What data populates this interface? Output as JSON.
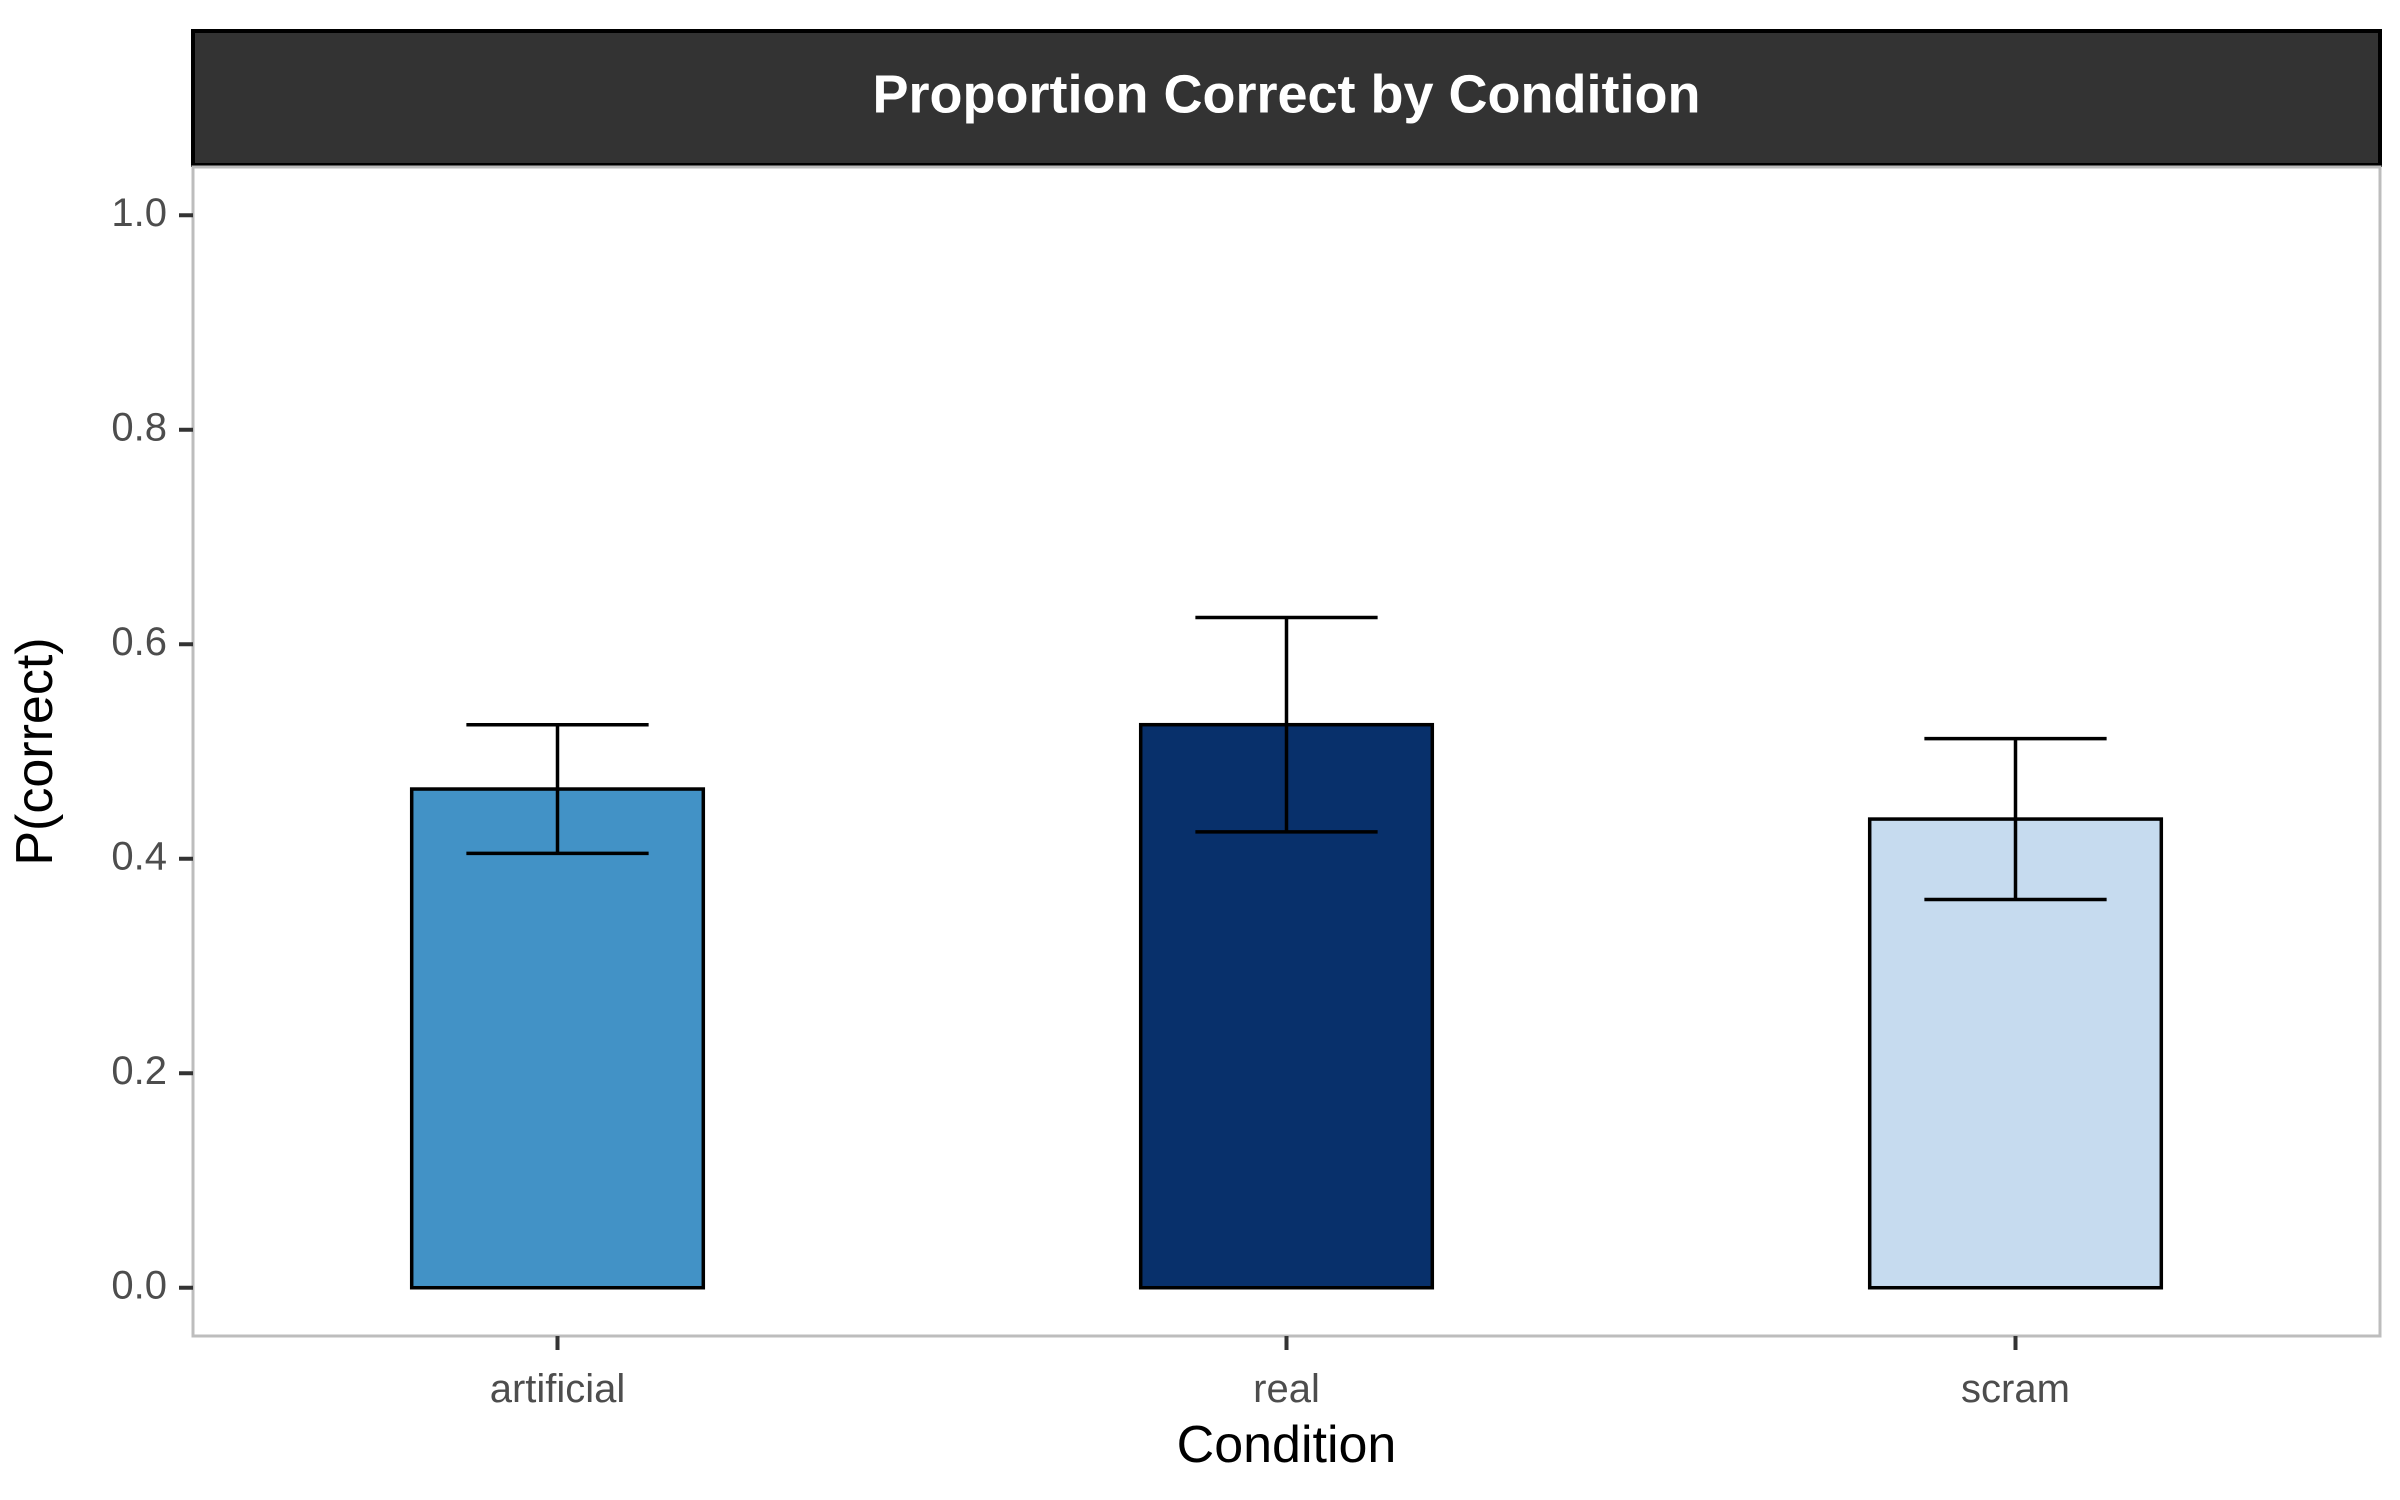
{
  "chart_data": {
    "type": "bar",
    "title": "Proportion Correct by Condition",
    "xlabel": "Condition",
    "ylabel": "P(correct)",
    "categories": [
      "artificial",
      "real",
      "scram"
    ],
    "values": [
      0.465,
      0.525,
      0.437
    ],
    "error_low": [
      0.405,
      0.425,
      0.362
    ],
    "error_high": [
      0.525,
      0.625,
      0.512
    ],
    "colors": [
      "#4292c6",
      "#08306b",
      "#c6dbef"
    ],
    "ylim": [
      -0.045,
      1.045
    ],
    "yticks": [
      0.0,
      0.2,
      0.4,
      0.6,
      0.8,
      1.0
    ],
    "ytick_labels": [
      "0.0",
      "0.2",
      "0.4",
      "0.6",
      "0.8",
      "1.0"
    ],
    "grid": false,
    "legend": "none"
  }
}
